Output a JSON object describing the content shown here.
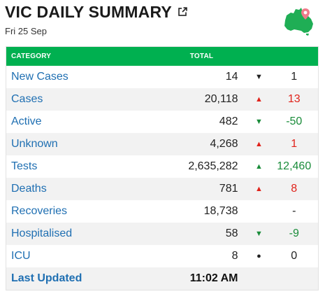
{
  "header": {
    "title": "VIC DAILY SUMMARY",
    "date": "Fri 25 Sep",
    "popout_icon": "external-link-icon",
    "map_icon": "australia-map-pin-icon"
  },
  "table": {
    "columns": {
      "category": "CATEGORY",
      "total": "TOTAL"
    },
    "rows": [
      {
        "category": "New Cases",
        "total": "14",
        "arrow": "▼",
        "direction": "neutral",
        "change": "1"
      },
      {
        "category": "Cases",
        "total": "20,118",
        "arrow": "▲",
        "direction": "up",
        "change": "13"
      },
      {
        "category": "Active",
        "total": "482",
        "arrow": "▼",
        "direction": "down",
        "change": "-50"
      },
      {
        "category": "Unknown",
        "total": "4,268",
        "arrow": "▲",
        "direction": "up",
        "change": "1"
      },
      {
        "category": "Tests",
        "total": "2,635,282",
        "arrow": "▲",
        "direction": "down",
        "change": "12,460"
      },
      {
        "category": "Deaths",
        "total": "781",
        "arrow": "▲",
        "direction": "up",
        "change": "8"
      },
      {
        "category": "Recoveries",
        "total": "18,738",
        "arrow": "",
        "direction": "neutral",
        "change": "-"
      },
      {
        "category": "Hospitalised",
        "total": "58",
        "arrow": "▼",
        "direction": "down",
        "change": "-9"
      },
      {
        "category": "ICU",
        "total": "8",
        "arrow": "●",
        "direction": "neutral",
        "change": "0"
      }
    ],
    "last_updated": {
      "label": "Last Updated",
      "value": "11:02 AM"
    }
  },
  "colors": {
    "header_bg": "#00b050",
    "link_blue": "#1f6fb2",
    "up_red": "#e0231b",
    "down_green": "#1a8c3a"
  }
}
